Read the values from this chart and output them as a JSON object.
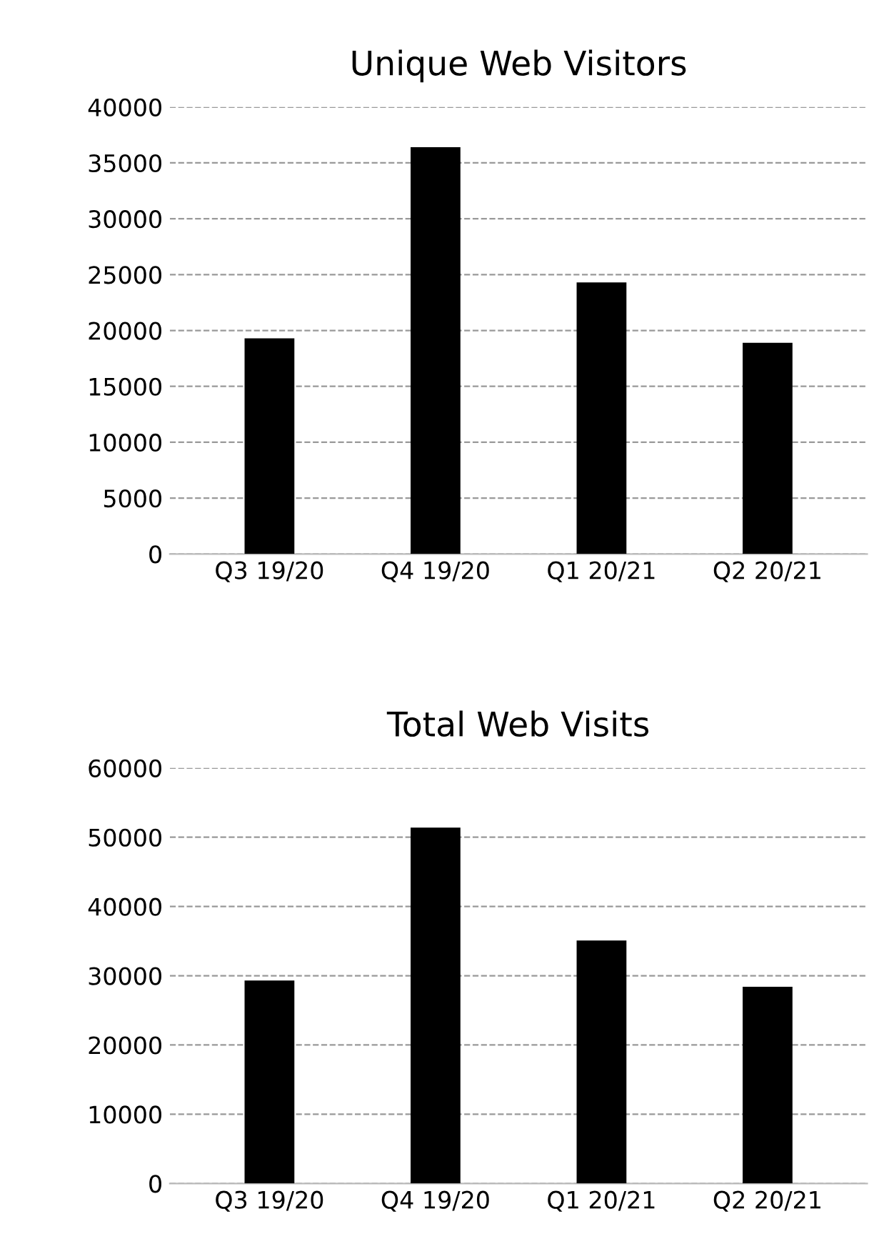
{
  "chart_data": [
    {
      "type": "bar",
      "title": "Unique Web Visitors",
      "categories": [
        "Q3 19/20",
        "Q4 19/20",
        "Q1 20/21",
        "Q2 20/21"
      ],
      "values": [
        19300,
        36400,
        24300,
        18900
      ],
      "color": "#000000",
      "ylim": [
        0,
        40000
      ],
      "yticks": [
        0,
        5000,
        10000,
        15000,
        20000,
        25000,
        30000,
        35000,
        40000
      ],
      "grid": "y",
      "legend": false
    },
    {
      "type": "bar",
      "title": "Total Web Visits",
      "categories": [
        "Q3 19/20",
        "Q4 19/20",
        "Q1 20/21",
        "Q2 20/21"
      ],
      "values": [
        29300,
        51400,
        35100,
        28400
      ],
      "color": "#000000",
      "ylim": [
        0,
        60000
      ],
      "yticks": [
        0,
        10000,
        20000,
        30000,
        40000,
        50000,
        60000
      ],
      "grid": "y",
      "legend": false
    }
  ]
}
